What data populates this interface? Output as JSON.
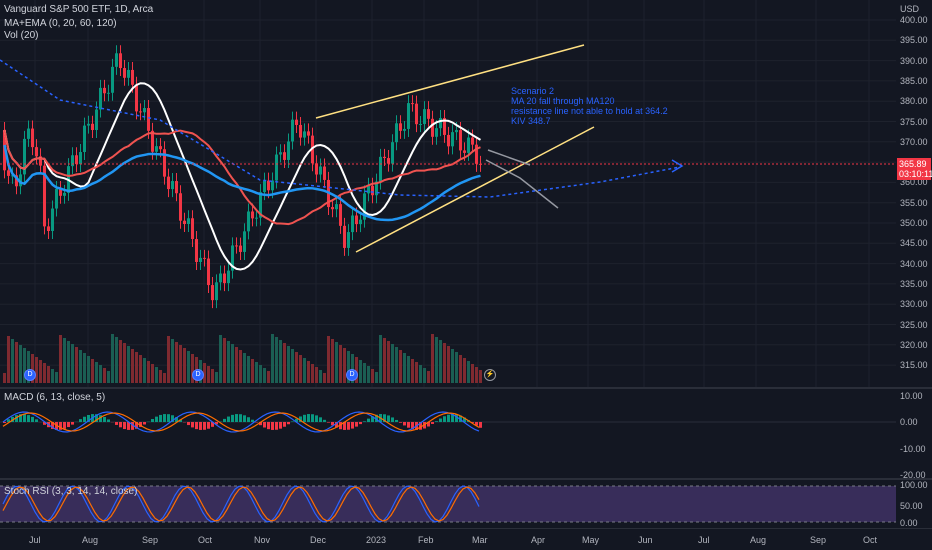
{
  "main": {
    "title": "Vanguard S&P 500 ETF, 1D, Arca",
    "indicator1": "MA+EMA (0, 20, 60, 120)",
    "indicator2": "Vol (20)",
    "currency": "USD",
    "price_labels": [
      "400.00",
      "395.00",
      "390.00",
      "385.00",
      "380.00",
      "375.00",
      "370.00",
      "365.00",
      "360.00",
      "355.00",
      "350.00",
      "345.00",
      "340.00",
      "335.00",
      "330.00",
      "325.00",
      "320.00",
      "315.00"
    ],
    "last_price": "365.89",
    "countdown": "03:10:11",
    "annotation": {
      "line1": "Scenario 2",
      "line2": "MA 20 fall through MA120",
      "line3": "resistance line not able to hold at 364.2",
      "line4": "KIV 348.7"
    },
    "event_markers": [
      "D",
      "D",
      "D",
      "⚡"
    ]
  },
  "macd": {
    "title": "MACD (6, 13, close, 5)",
    "labels": [
      "10.00",
      "0.00",
      "-10.00",
      "-20.00"
    ]
  },
  "rsi": {
    "title": "Stoch RSI (3, 3, 14, 14, close)",
    "labels": [
      "100.00",
      "50.00",
      "0.00"
    ]
  },
  "time_axis": [
    "Jul",
    "Aug",
    "Sep",
    "Oct",
    "Nov",
    "Dec",
    "2023",
    "Feb",
    "Mar",
    "Apr",
    "May",
    "Jun",
    "Jul",
    "Aug",
    "Sep",
    "Oct"
  ],
  "colors": {
    "up": "#089981",
    "down": "#f23645",
    "ma20": "#ffffff",
    "ema60": "#ef5350",
    "ma120": "#2196f3",
    "trend": "#ffe082",
    "projection": "#2962ff",
    "rsi_band": "#7e57c2"
  }
}
